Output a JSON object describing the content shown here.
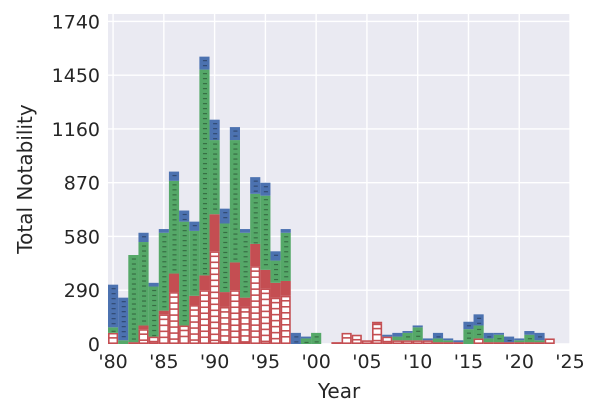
{
  "chart_data": {
    "type": "bar",
    "stacked": true,
    "title": "",
    "xlabel": "Year",
    "ylabel": "Total Notability",
    "x": [
      1980,
      1981,
      1982,
      1983,
      1984,
      1985,
      1986,
      1987,
      1988,
      1989,
      1990,
      1991,
      1992,
      1993,
      1994,
      1995,
      1996,
      1997,
      1998,
      1999,
      2000,
      2001,
      2002,
      2003,
      2004,
      2005,
      2006,
      2007,
      2008,
      2009,
      2010,
      2011,
      2012,
      2013,
      2014,
      2015,
      2016,
      2017,
      2018,
      2019,
      2020,
      2021,
      2022,
      2023
    ],
    "series": [
      {
        "color": "#c44e52",
        "style": "hollow-hatched",
        "values": [
          60,
          0,
          10,
          80,
          40,
          160,
          280,
          100,
          210,
          290,
          500,
          200,
          290,
          200,
          420,
          300,
          250,
          260,
          0,
          0,
          0,
          0,
          10,
          60,
          50,
          20,
          110,
          40,
          20,
          20,
          20,
          20,
          10,
          10,
          10,
          0,
          30,
          10,
          10,
          10,
          10,
          10,
          10,
          30
        ]
      },
      {
        "color": "#c44e52",
        "style": "solid",
        "values": [
          0,
          0,
          0,
          20,
          0,
          20,
          100,
          0,
          50,
          80,
          200,
          80,
          150,
          50,
          120,
          100,
          80,
          80,
          0,
          0,
          0,
          0,
          0,
          0,
          0,
          0,
          10,
          0,
          0,
          0,
          0,
          0,
          0,
          0,
          0,
          0,
          0,
          0,
          0,
          0,
          0,
          0,
          0,
          0
        ]
      },
      {
        "color": "#55a868",
        "style": "hatched",
        "values": [
          30,
          20,
          470,
          450,
          270,
          420,
          500,
          560,
          350,
          1110,
          400,
          370,
          660,
          350,
          270,
          400,
          120,
          260,
          0,
          30,
          60,
          0,
          0,
          0,
          0,
          0,
          0,
          0,
          20,
          40,
          70,
          0,
          20,
          10,
          0,
          80,
          70,
          20,
          40,
          0,
          10,
          40,
          10,
          0
        ]
      },
      {
        "color": "#4c72b0",
        "style": "hatched",
        "values": [
          230,
          230,
          0,
          50,
          20,
          20,
          50,
          60,
          50,
          70,
          110,
          80,
          70,
          20,
          90,
          70,
          50,
          20,
          60,
          10,
          0,
          0,
          0,
          0,
          0,
          0,
          0,
          10,
          20,
          10,
          10,
          10,
          30,
          10,
          10,
          40,
          60,
          30,
          10,
          30,
          10,
          20,
          40,
          0
        ]
      }
    ],
    "xticks": [
      "'80",
      "'85",
      "'90",
      "'95",
      "'00",
      "'05",
      "'10",
      "'15",
      "'20",
      "'25"
    ],
    "xtick_values": [
      1980,
      1985,
      1990,
      1995,
      2000,
      2005,
      2010,
      2015,
      2020,
      2025
    ],
    "yticks": [
      "0",
      "290",
      "580",
      "870",
      "1160",
      "1450",
      "1740"
    ],
    "ytick_values": [
      0,
      290,
      580,
      870,
      1160,
      1450,
      1740
    ],
    "xlim": [
      1979.5,
      2025
    ],
    "ylim": [
      0,
      1780
    ],
    "grid": true,
    "legend": false,
    "background_color": "#eaeaf2"
  }
}
